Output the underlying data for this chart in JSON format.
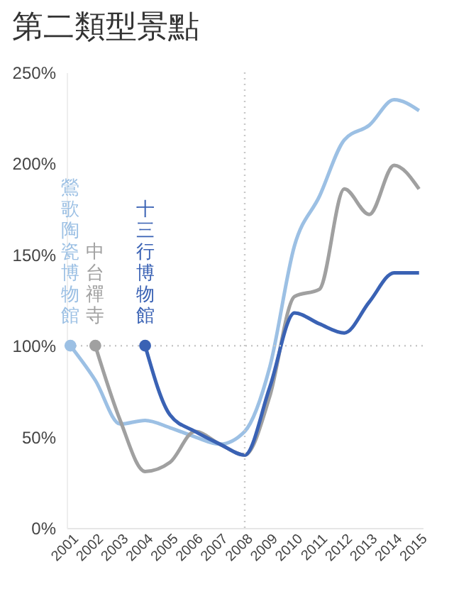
{
  "chart_data": {
    "type": "line",
    "title": "第二類型景點",
    "categories": [
      "2001",
      "2002",
      "2003",
      "2004",
      "2005",
      "2006",
      "2007",
      "2008",
      "2009",
      "2010",
      "2011",
      "2012",
      "2013",
      "2014",
      "2015"
    ],
    "series": [
      {
        "name": "鶯歌陶瓷博物館",
        "color": "#9cc0e4",
        "values": [
          100,
          81,
          57,
          59,
          55,
          50,
          46,
          53,
          88,
          155,
          182,
          213,
          221,
          235,
          229
        ]
      },
      {
        "name": "中台禪寺",
        "color": "#a0a0a0",
        "values": [
          null,
          100,
          59,
          31,
          36,
          53,
          46,
          40,
          72,
          127,
          131,
          186,
          172,
          199,
          186
        ]
      },
      {
        "name": "十三行博物館",
        "color": "#3a62b4",
        "values": [
          null,
          null,
          null,
          100,
          62,
          53,
          46,
          40,
          77,
          118,
          112,
          107,
          124,
          140,
          140
        ]
      }
    ],
    "ylim": [
      0,
      250
    ],
    "yticks": [
      {
        "value": 0,
        "label": "0%"
      },
      {
        "value": 50,
        "label": "50%"
      },
      {
        "value": 100,
        "label": "100%"
      },
      {
        "value": 150,
        "label": "150%"
      },
      {
        "value": 200,
        "label": "200%"
      },
      {
        "value": 250,
        "label": "250%"
      }
    ],
    "ref_lines": [
      {
        "axis": "x",
        "value": "2008",
        "color": "#c8c8c8",
        "line_style": "dotted"
      },
      {
        "axis": "y",
        "value": 100,
        "color": "#c8c8c8",
        "line_style": "dotted"
      }
    ],
    "grid": false,
    "legend": false,
    "line_style": "solid"
  }
}
